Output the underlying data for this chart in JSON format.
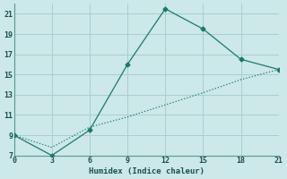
{
  "xlabel": "Humidex (Indice chaleur)",
  "bg_color": "#cce8e8",
  "grid_color": "#aacece",
  "line_color": "#1a7a6a",
  "xlim": [
    0,
    21
  ],
  "ylim": [
    7,
    22
  ],
  "xticks": [
    0,
    3,
    6,
    9,
    12,
    15,
    18,
    21
  ],
  "yticks": [
    7,
    9,
    11,
    13,
    15,
    17,
    19,
    21
  ],
  "line1_x": [
    0,
    3,
    6,
    9,
    12,
    15,
    18,
    21
  ],
  "line1_y": [
    9,
    7,
    9.5,
    16,
    21.5,
    19.5,
    16.5,
    15.5
  ],
  "line2_x": [
    0,
    3,
    6,
    9,
    12,
    15,
    18,
    21
  ],
  "line2_y": [
    9,
    7.8,
    9.8,
    10.8,
    12.0,
    13.2,
    14.5,
    15.5
  ]
}
